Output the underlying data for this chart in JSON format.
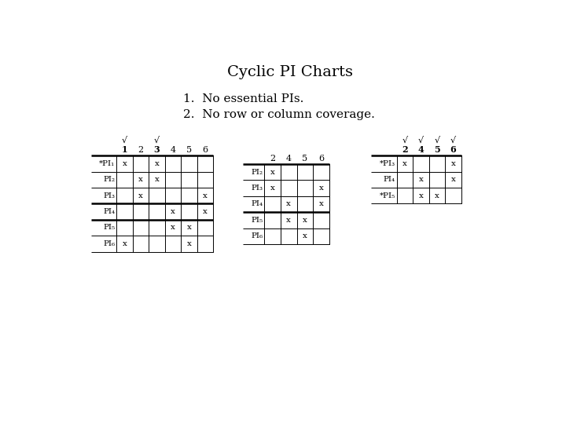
{
  "title": "Cyclic PI Charts",
  "subtitle1": "1.  No essential PIs.",
  "subtitle2": "2.  No row or column coverage.",
  "table1": {
    "col_headers": [
      "1",
      "2",
      "3",
      "4",
      "5",
      "6"
    ],
    "col_checks": [
      true,
      false,
      true,
      false,
      false,
      false
    ],
    "row_labels": [
      "*PI₁",
      "PI₂",
      "PI₃",
      "PI₄",
      "PI₅",
      "PI₆"
    ],
    "cells": [
      [
        true,
        false,
        true,
        false,
        false,
        false
      ],
      [
        false,
        true,
        true,
        false,
        false,
        false
      ],
      [
        false,
        true,
        false,
        false,
        false,
        true
      ],
      [
        false,
        false,
        false,
        true,
        false,
        true
      ],
      [
        false,
        false,
        false,
        true,
        true,
        false
      ],
      [
        true,
        false,
        false,
        false,
        true,
        false
      ]
    ],
    "thick_row_after": [
      2,
      3
    ],
    "star_rows": [
      0
    ]
  },
  "table2": {
    "col_headers": [
      "2",
      "4",
      "5",
      "6"
    ],
    "col_checks": [
      false,
      false,
      false,
      false
    ],
    "row_labels": [
      "PI₂",
      "PI₃",
      "PI₄",
      "PI₅",
      "PI₆"
    ],
    "cells": [
      [
        true,
        false,
        false,
        false
      ],
      [
        true,
        false,
        false,
        true
      ],
      [
        false,
        true,
        false,
        true
      ],
      [
        false,
        true,
        true,
        false
      ],
      [
        false,
        false,
        true,
        false
      ]
    ],
    "thick_row_after": [
      2
    ],
    "star_rows": []
  },
  "table3": {
    "col_headers": [
      "2",
      "4",
      "5",
      "6"
    ],
    "col_checks": [
      true,
      true,
      true,
      true
    ],
    "row_labels": [
      "*PI₃",
      "PI₄",
      "*PI₅"
    ],
    "cells": [
      [
        true,
        false,
        false,
        true
      ],
      [
        false,
        true,
        false,
        true
      ],
      [
        false,
        true,
        true,
        false
      ]
    ],
    "thick_row_after": [],
    "star_rows": [
      0,
      2
    ]
  }
}
